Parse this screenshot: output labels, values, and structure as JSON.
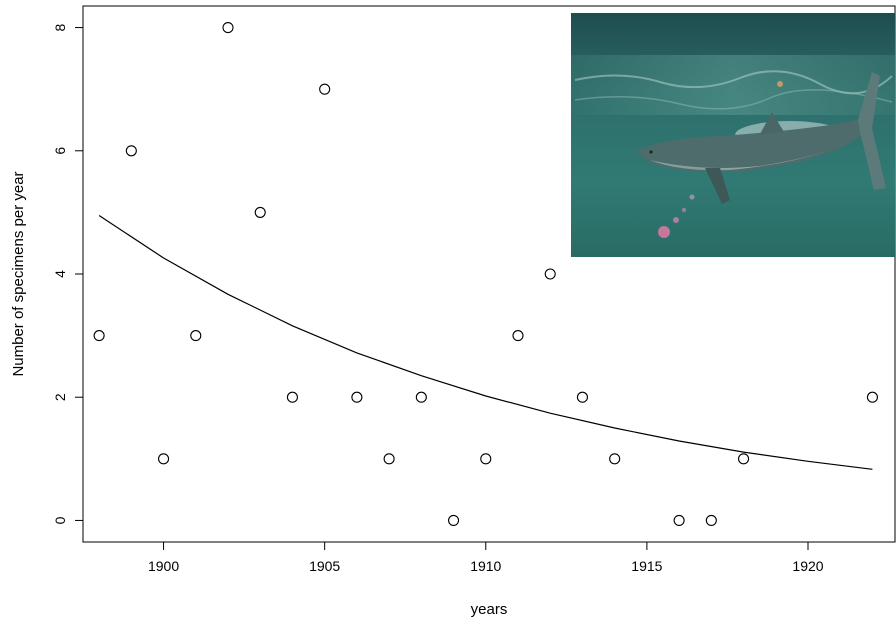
{
  "chart_data": {
    "type": "scatter",
    "title": "",
    "xlabel": "years",
    "ylabel": "Number of specimens per year",
    "xlim": [
      1897.5,
      1922.7
    ],
    "ylim": [
      -0.35,
      8.35
    ],
    "x_ticks": [
      1900,
      1905,
      1910,
      1915,
      1920
    ],
    "y_ticks": [
      0,
      2,
      4,
      6,
      8
    ],
    "grid": false,
    "legend": "none",
    "points": [
      {
        "x": 1898,
        "y": 3
      },
      {
        "x": 1899,
        "y": 6
      },
      {
        "x": 1900,
        "y": 1
      },
      {
        "x": 1901,
        "y": 3
      },
      {
        "x": 1902,
        "y": 8
      },
      {
        "x": 1903,
        "y": 5
      },
      {
        "x": 1904,
        "y": 2
      },
      {
        "x": 1905,
        "y": 7
      },
      {
        "x": 1906,
        "y": 2
      },
      {
        "x": 1907,
        "y": 1
      },
      {
        "x": 1908,
        "y": 2
      },
      {
        "x": 1909,
        "y": 0
      },
      {
        "x": 1910,
        "y": 1
      },
      {
        "x": 1911,
        "y": 3
      },
      {
        "x": 1912,
        "y": 4
      },
      {
        "x": 1913,
        "y": 2
      },
      {
        "x": 1914,
        "y": 1
      },
      {
        "x": 1916,
        "y": 0
      },
      {
        "x": 1917,
        "y": 0
      },
      {
        "x": 1918,
        "y": 1
      },
      {
        "x": 1922,
        "y": 2
      }
    ],
    "fitted_curve": {
      "form": "exponential",
      "x": [
        1898,
        1900,
        1902,
        1904,
        1906,
        1908,
        1910,
        1912,
        1914,
        1916,
        1918,
        1920,
        1922
      ],
      "y": [
        4.95,
        4.26,
        3.67,
        3.16,
        2.72,
        2.35,
        2.02,
        1.74,
        1.5,
        1.29,
        1.11,
        0.96,
        0.83
      ]
    },
    "inset_image": "shark-underwater-photo"
  }
}
